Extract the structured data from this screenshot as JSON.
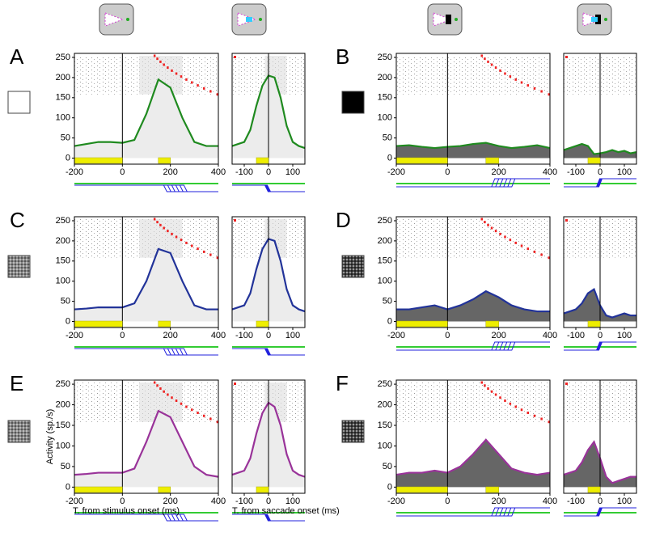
{
  "chart_data": [
    {
      "type": "line",
      "title": "A",
      "x": [
        -200,
        -150,
        -100,
        -50,
        0,
        50,
        100,
        150,
        200,
        250,
        300,
        350,
        400
      ],
      "values": [
        30,
        35,
        40,
        40,
        38,
        45,
        110,
        195,
        175,
        100,
        40,
        30,
        30
      ],
      "color": "#1f8a1f",
      "fill_color": "#ececec",
      "xlim": [
        -200,
        400
      ],
      "xticks": [
        -200,
        0,
        200,
        400
      ],
      "ylim": [
        -15,
        260
      ],
      "yticks": [
        0,
        50,
        100,
        150,
        200,
        250
      ]
    },
    {
      "type": "line",
      "x": [
        -150,
        -125,
        -100,
        -75,
        -50,
        -25,
        0,
        25,
        50,
        75,
        100,
        125,
        150
      ],
      "values": [
        30,
        35,
        40,
        70,
        130,
        180,
        205,
        200,
        150,
        80,
        40,
        30,
        25
      ],
      "color": "#1f8a1f",
      "fill_color": "#ececec",
      "xlim": [
        -150,
        150
      ],
      "xticks": [
        -100,
        0,
        100
      ],
      "ylim": [
        -15,
        260
      ]
    },
    {
      "type": "line",
      "title": "B",
      "x": [
        -200,
        -150,
        -100,
        -50,
        0,
        50,
        100,
        150,
        200,
        250,
        300,
        350,
        400
      ],
      "values": [
        30,
        32,
        28,
        25,
        28,
        30,
        35,
        38,
        30,
        25,
        28,
        32,
        25
      ],
      "color": "#1f8a1f",
      "fill_color": "#666666",
      "xlim": [
        -200,
        400
      ],
      "xticks": [
        -200,
        0,
        200,
        400
      ],
      "ylim": [
        -15,
        260
      ],
      "yticks": [
        0,
        50,
        100,
        150,
        200,
        250
      ]
    },
    {
      "type": "line",
      "x": [
        -150,
        -125,
        -100,
        -75,
        -50,
        -25,
        0,
        25,
        50,
        75,
        100,
        125,
        150
      ],
      "values": [
        20,
        25,
        30,
        35,
        30,
        10,
        12,
        15,
        20,
        15,
        18,
        12,
        15
      ],
      "color": "#1f8a1f",
      "fill_color": "#666666",
      "xlim": [
        -150,
        150
      ],
      "xticks": [
        -100,
        0,
        100
      ],
      "ylim": [
        -15,
        260
      ]
    },
    {
      "type": "line",
      "title": "C",
      "x": [
        -200,
        -150,
        -100,
        -50,
        0,
        50,
        100,
        150,
        200,
        250,
        300,
        350,
        400
      ],
      "values": [
        30,
        32,
        35,
        35,
        35,
        45,
        100,
        180,
        170,
        100,
        40,
        30,
        30
      ],
      "color": "#223399",
      "fill_color": "#ececec",
      "xlim": [
        -200,
        400
      ],
      "xticks": [
        -200,
        0,
        200,
        400
      ],
      "ylim": [
        -15,
        260
      ],
      "yticks": [
        0,
        50,
        100,
        150,
        200,
        250
      ]
    },
    {
      "type": "line",
      "x": [
        -150,
        -125,
        -100,
        -75,
        -50,
        -25,
        0,
        25,
        50,
        75,
        100,
        125,
        150
      ],
      "values": [
        30,
        35,
        40,
        70,
        130,
        180,
        205,
        200,
        150,
        80,
        40,
        30,
        25
      ],
      "color": "#223399",
      "fill_color": "#ececec",
      "xlim": [
        -150,
        150
      ],
      "xticks": [
        -100,
        0,
        100
      ],
      "ylim": [
        -15,
        260
      ]
    },
    {
      "type": "line",
      "title": "D",
      "x": [
        -200,
        -150,
        -100,
        -50,
        0,
        50,
        100,
        150,
        200,
        250,
        300,
        350,
        400
      ],
      "values": [
        30,
        30,
        35,
        40,
        30,
        40,
        55,
        75,
        60,
        40,
        30,
        25,
        25
      ],
      "color": "#223399",
      "fill_color": "#666666",
      "xlim": [
        -200,
        400
      ],
      "xticks": [
        -200,
        0,
        200,
        400
      ],
      "ylim": [
        -15,
        260
      ],
      "yticks": [
        0,
        50,
        100,
        150,
        200,
        250
      ]
    },
    {
      "type": "line",
      "x": [
        -150,
        -125,
        -100,
        -75,
        -50,
        -25,
        0,
        25,
        50,
        75,
        100,
        125,
        150
      ],
      "values": [
        20,
        25,
        30,
        45,
        70,
        80,
        40,
        15,
        10,
        15,
        20,
        15,
        15
      ],
      "color": "#223399",
      "fill_color": "#666666",
      "xlim": [
        -150,
        150
      ],
      "xticks": [
        -100,
        0,
        100
      ],
      "ylim": [
        -15,
        260
      ]
    },
    {
      "type": "line",
      "title": "E",
      "x": [
        -200,
        -150,
        -100,
        -50,
        0,
        50,
        100,
        150,
        200,
        250,
        300,
        350,
        400
      ],
      "values": [
        30,
        32,
        35,
        35,
        35,
        45,
        110,
        185,
        170,
        110,
        50,
        30,
        25
      ],
      "color": "#993399",
      "fill_color": "#ececec",
      "xlim": [
        -200,
        400
      ],
      "xticks": [
        -200,
        0,
        200,
        400
      ],
      "ylim": [
        -15,
        260
      ],
      "yticks": [
        0,
        50,
        100,
        150,
        200,
        250
      ],
      "ylabel": "Activity (sp./s)",
      "xlabel": "T. from stimulus onset (ms)"
    },
    {
      "type": "line",
      "x": [
        -150,
        -125,
        -100,
        -75,
        -50,
        -25,
        0,
        25,
        50,
        75,
        100,
        125,
        150
      ],
      "values": [
        30,
        35,
        40,
        70,
        130,
        180,
        205,
        195,
        150,
        80,
        40,
        30,
        25
      ],
      "color": "#993399",
      "fill_color": "#ececec",
      "xlim": [
        -150,
        150
      ],
      "xticks": [
        -100,
        0,
        100
      ],
      "ylim": [
        -15,
        260
      ],
      "xlabel": "T. from saccade onset (ms)"
    },
    {
      "type": "line",
      "title": "F",
      "x": [
        -200,
        -150,
        -100,
        -50,
        0,
        50,
        100,
        150,
        200,
        250,
        300,
        350,
        400
      ],
      "values": [
        30,
        35,
        35,
        40,
        35,
        50,
        80,
        115,
        80,
        45,
        35,
        30,
        35
      ],
      "color": "#993399",
      "fill_color": "#666666",
      "xlim": [
        -200,
        400
      ],
      "xticks": [
        -200,
        0,
        200,
        400
      ],
      "ylim": [
        -15,
        260
      ],
      "yticks": [
        0,
        50,
        100,
        150,
        200,
        250
      ]
    },
    {
      "type": "line",
      "x": [
        -150,
        -125,
        -100,
        -75,
        -50,
        -25,
        0,
        25,
        50,
        75,
        100,
        125,
        150
      ],
      "values": [
        30,
        35,
        40,
        60,
        90,
        110,
        70,
        25,
        10,
        15,
        20,
        25,
        25
      ],
      "color": "#993399",
      "fill_color": "#666666",
      "xlim": [
        -150,
        150
      ],
      "xticks": [
        -100,
        0,
        100
      ],
      "ylim": [
        -15,
        260
      ]
    }
  ]
}
